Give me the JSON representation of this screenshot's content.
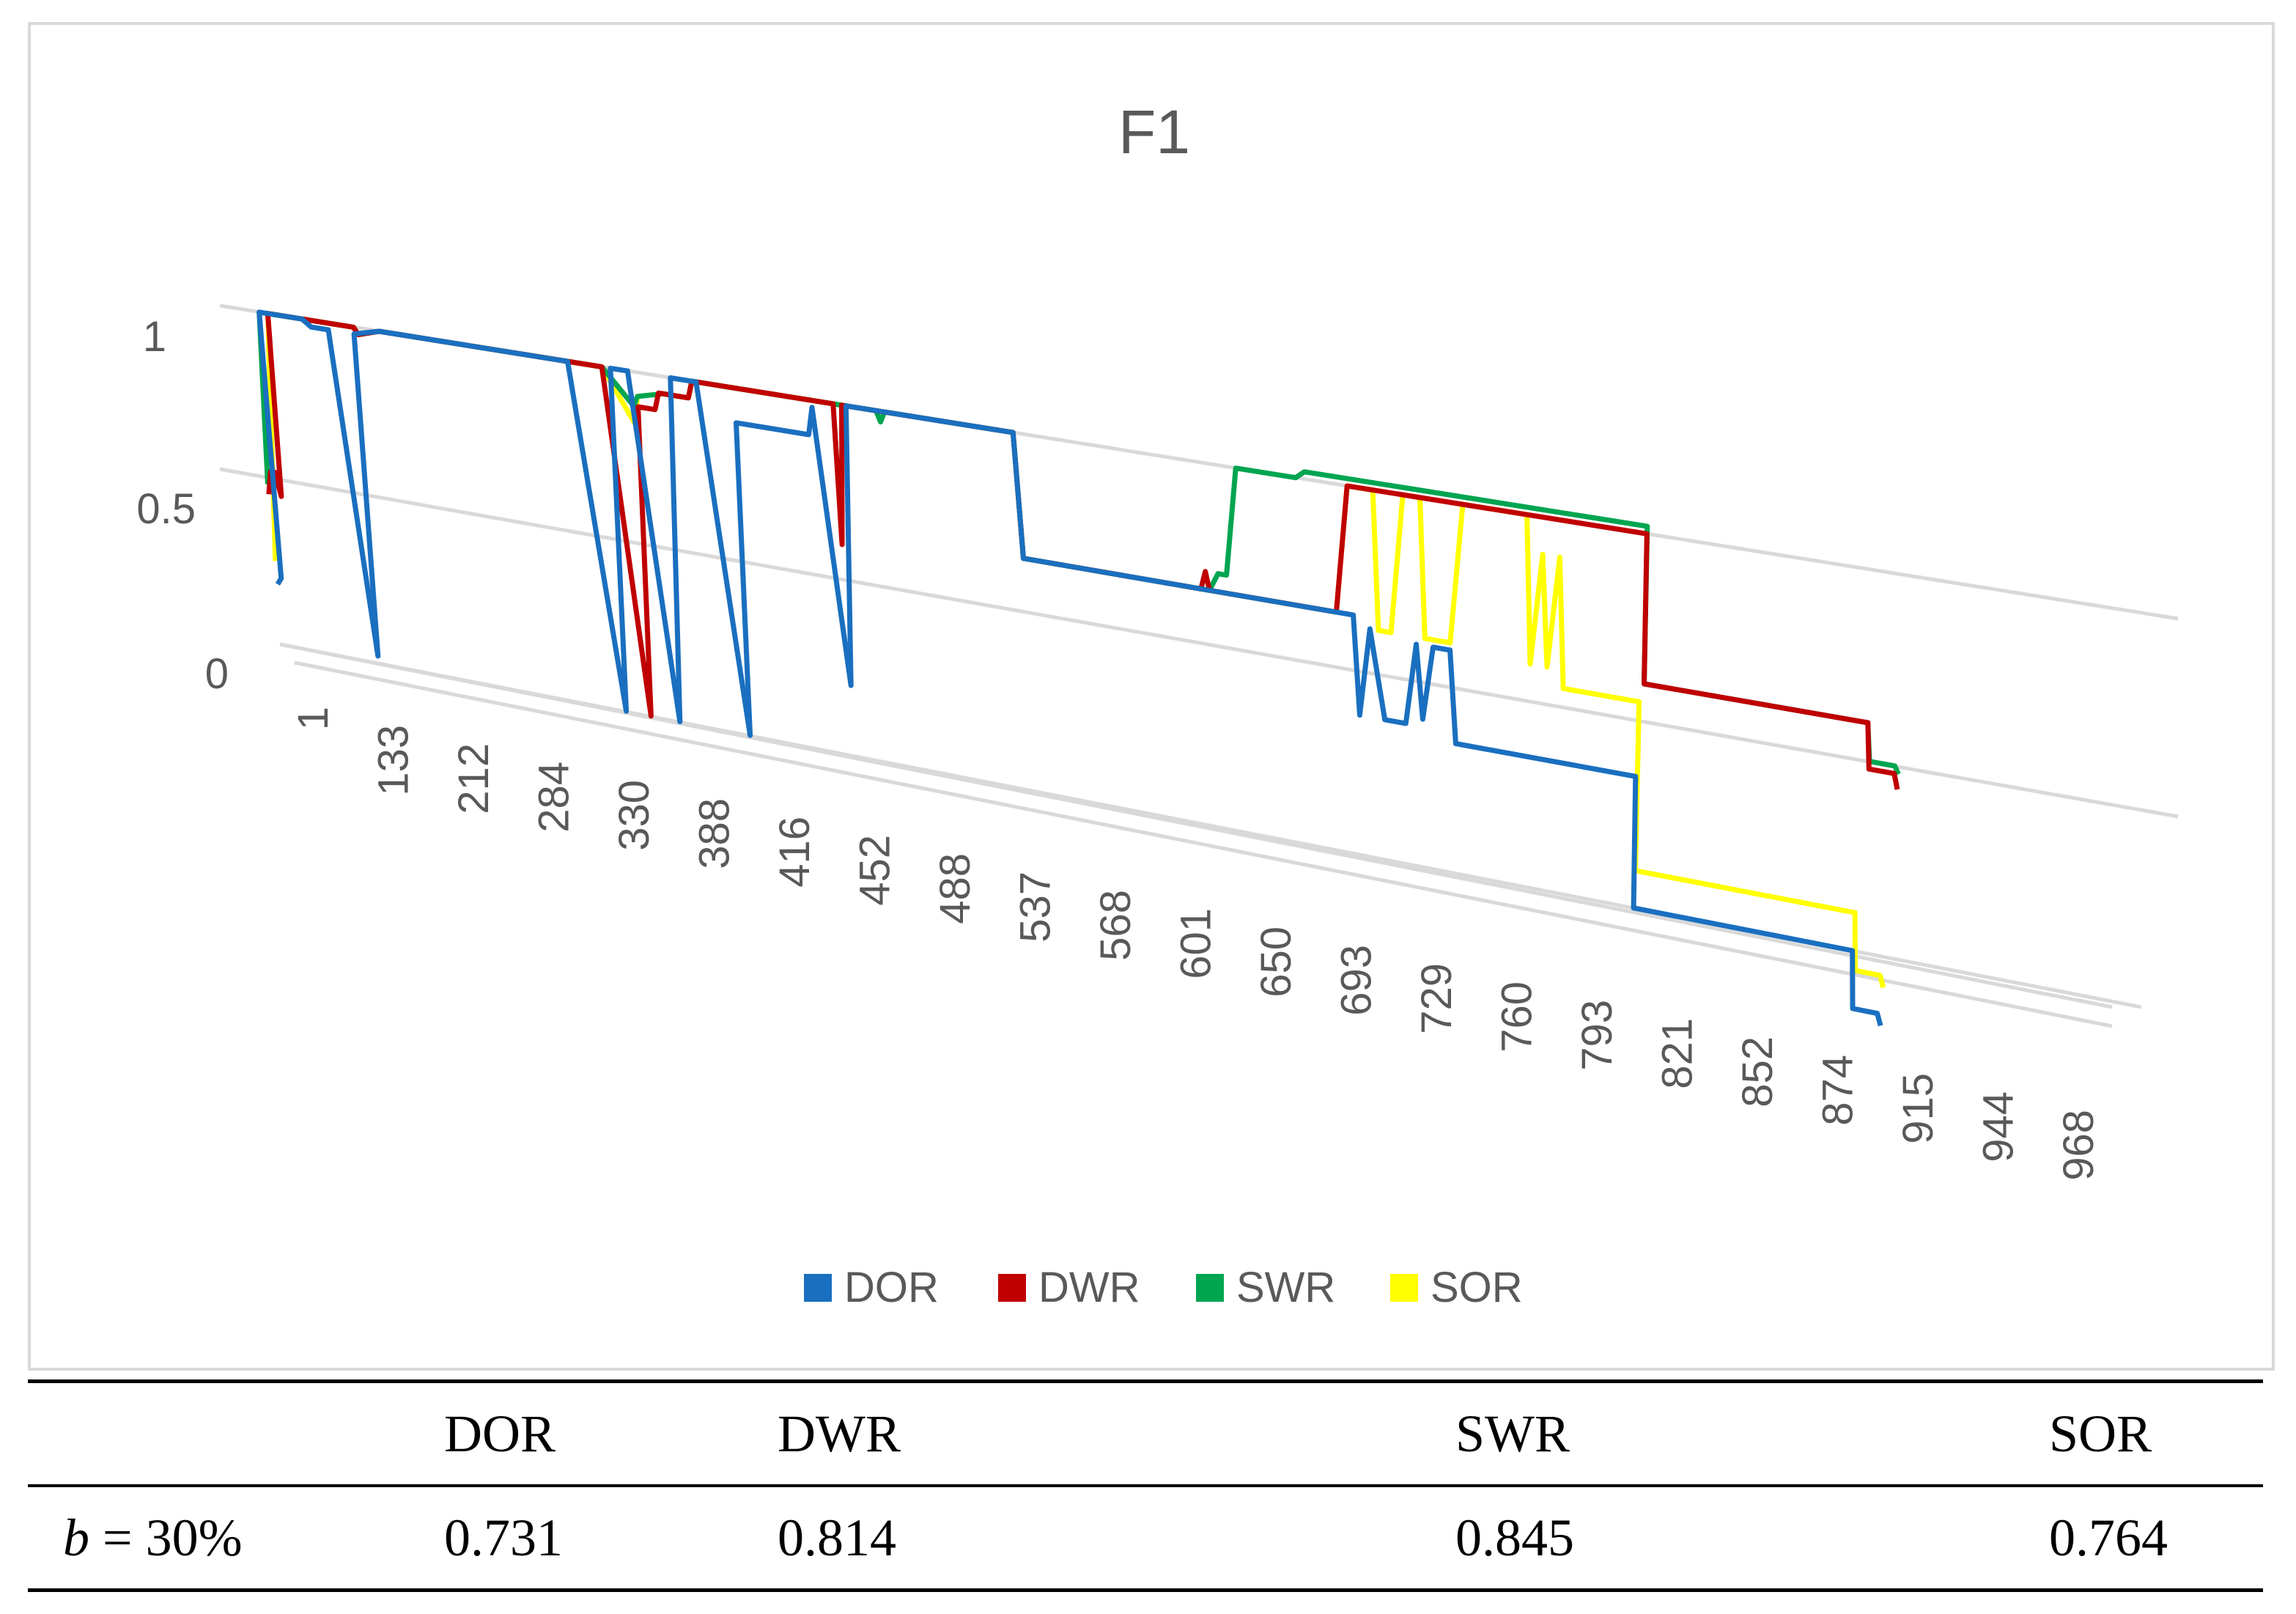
{
  "chart_data": {
    "type": "line",
    "title": "F1",
    "xlabel": "",
    "ylabel": "",
    "ylim": [
      0,
      1
    ],
    "y_ticks": [
      "0",
      "0.5",
      "1"
    ],
    "grid": true,
    "legend_position": "bottom",
    "categories": [
      "1",
      "133",
      "212",
      "284",
      "330",
      "388",
      "416",
      "452",
      "488",
      "537",
      "568",
      "601",
      "650",
      "693",
      "729",
      "760",
      "793",
      "821",
      "852",
      "874",
      "915",
      "944",
      "968"
    ],
    "series": [
      {
        "name": "DOR",
        "color": "#1a6fc0",
        "points": [
          [
            0,
            0.18
          ],
          [
            0.05,
            0.2
          ],
          [
            0.1,
            1
          ],
          [
            0.6,
            1
          ],
          [
            0.7,
            0.98
          ],
          [
            0.9,
            0.98
          ],
          [
            1.15,
            0.02
          ],
          [
            1.2,
            0.98
          ],
          [
            1.5,
            1
          ],
          [
            3.7,
            1
          ],
          [
            4.15,
            0
          ],
          [
            4.2,
            1
          ],
          [
            4.4,
            1
          ],
          [
            4.8,
            0
          ],
          [
            4.9,
            1
          ],
          [
            5.2,
            1
          ],
          [
            5.65,
            0
          ],
          [
            5.65,
            0.9
          ],
          [
            5.7,
            0.9
          ],
          [
            6.5,
            0.9
          ],
          [
            6.55,
            0.98
          ],
          [
            6.9,
            0.2
          ],
          [
            6.95,
            1
          ],
          [
            8.9,
            1
          ],
          [
            9.0,
            0.65
          ],
          [
            12.9,
            0.65
          ],
          [
            13.0,
            0.38
          ],
          [
            13.1,
            0.62
          ],
          [
            13.3,
            0.38
          ],
          [
            13.55,
            0.38
          ],
          [
            13.65,
            0.6
          ],
          [
            13.75,
            0.4
          ],
          [
            13.85,
            0.6
          ],
          [
            14.05,
            0.6
          ],
          [
            14.15,
            0.35
          ],
          [
            16.3,
            0.35
          ],
          [
            16.35,
            0
          ],
          [
            19.0,
            0
          ],
          [
            19.05,
            -0.15
          ],
          [
            19.35,
            -0.15
          ],
          [
            19.4,
            -0.18
          ]
        ]
      },
      {
        "name": "DWR",
        "color": "#c00000",
        "points": [
          [
            0,
            0.45
          ],
          [
            0.05,
            0.52
          ],
          [
            0.1,
            0.52
          ],
          [
            0.15,
            0.45
          ],
          [
            0.2,
            1
          ],
          [
            1.2,
            1
          ],
          [
            1.25,
            0.98
          ],
          [
            1.5,
            1
          ],
          [
            4.1,
            1
          ],
          [
            4.45,
            0
          ],
          [
            4.5,
            0.9
          ],
          [
            4.7,
            0.9
          ],
          [
            4.75,
            0.95
          ],
          [
            5.1,
            0.95
          ],
          [
            5.15,
            1
          ],
          [
            6.8,
            1
          ],
          [
            6.85,
            0.6
          ],
          [
            6.9,
            1
          ],
          [
            8.9,
            1
          ],
          [
            9.0,
            0.65
          ],
          [
            11.1,
            0.65
          ],
          [
            11.15,
            0.7
          ],
          [
            11.2,
            0.65
          ],
          [
            12.7,
            0.65
          ],
          [
            12.8,
            1
          ],
          [
            16.3,
            1
          ],
          [
            16.35,
            0.6
          ],
          [
            19.0,
            0.6
          ],
          [
            19.05,
            0.48
          ],
          [
            19.35,
            0.48
          ],
          [
            19.4,
            0.44
          ]
        ]
      },
      {
        "name": "SWR",
        "color": "#00a550",
        "points": [
          [
            0,
            0.48
          ],
          [
            0.1,
            1
          ],
          [
            1.2,
            1
          ],
          [
            1.25,
            0.98
          ],
          [
            1.5,
            1
          ],
          [
            4.1,
            1
          ],
          [
            4.45,
            0.9
          ],
          [
            4.5,
            0.93
          ],
          [
            4.8,
            0.95
          ],
          [
            5.1,
            0.95
          ],
          [
            5.15,
            1
          ],
          [
            7.3,
            1
          ],
          [
            7.35,
            0.97
          ],
          [
            7.4,
            1
          ],
          [
            8.9,
            1
          ],
          [
            9.0,
            0.65
          ],
          [
            11.2,
            0.65
          ],
          [
            11.3,
            0.7
          ],
          [
            11.4,
            0.7
          ],
          [
            11.5,
            1
          ],
          [
            12.2,
            1
          ],
          [
            12.3,
            1.02
          ],
          [
            16.3,
            1.02
          ],
          [
            16.35,
            0.6
          ],
          [
            19.0,
            0.6
          ],
          [
            19.05,
            0.5
          ],
          [
            19.35,
            0.5
          ],
          [
            19.4,
            0.48
          ]
        ]
      },
      {
        "name": "SOR",
        "color": "#ffff00",
        "points": [
          [
            0,
            0.25
          ],
          [
            0.2,
            1
          ],
          [
            1.2,
            1
          ],
          [
            1.25,
            0.98
          ],
          [
            1.5,
            1
          ],
          [
            4.1,
            1
          ],
          [
            4.45,
            0.85
          ],
          [
            4.5,
            0.93
          ],
          [
            4.8,
            0.95
          ],
          [
            5.1,
            0.95
          ],
          [
            5.15,
            1
          ],
          [
            8.9,
            1
          ],
          [
            9.0,
            0.65
          ],
          [
            11.3,
            0.65
          ],
          [
            12.7,
            0.65
          ],
          [
            12.8,
            1
          ],
          [
            13.1,
            1
          ],
          [
            13.2,
            0.62
          ],
          [
            13.35,
            0.62
          ],
          [
            13.45,
            1
          ],
          [
            13.65,
            1
          ],
          [
            13.75,
            0.62
          ],
          [
            14.05,
            0.62
          ],
          [
            14.15,
            1
          ],
          [
            14.9,
            1
          ],
          [
            15.0,
            0.6
          ],
          [
            15.1,
            0.9
          ],
          [
            15.2,
            0.6
          ],
          [
            15.3,
            0.9
          ],
          [
            15.4,
            0.55
          ],
          [
            16.3,
            0.55
          ],
          [
            16.35,
            0.1
          ],
          [
            19.0,
            0.1
          ],
          [
            19.05,
            -0.05
          ],
          [
            19.35,
            -0.05
          ],
          [
            19.4,
            -0.08
          ]
        ]
      }
    ]
  },
  "table": {
    "headers": [
      "",
      "DOR",
      "DWR",
      "SWR",
      "SOR"
    ],
    "row_label_var": "b",
    "row_label_rest": " = 30%",
    "values": [
      "0.731",
      "0.814",
      "0.845",
      "0.764"
    ]
  },
  "colors": {
    "axis_text": "#595959",
    "gridline": "#d9d9d9",
    "frame": "#d9d9d9"
  }
}
